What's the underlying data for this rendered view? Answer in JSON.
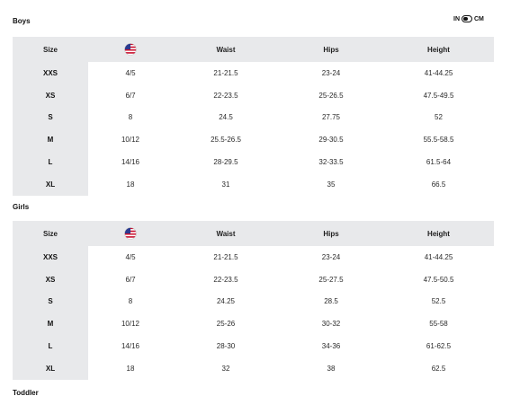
{
  "unit_toggle": {
    "left_label": "IN",
    "right_label": "CM",
    "selected": "IN"
  },
  "columns": {
    "size": "Size",
    "us_flag_icon": "us-flag-icon",
    "waist": "Waist",
    "hips": "Hips",
    "height": "Height"
  },
  "boys": {
    "title": "Boys",
    "rows": [
      {
        "size": "XXS",
        "us": "4/5",
        "waist": "21-21.5",
        "hips": "23-24",
        "height": "41-44.25"
      },
      {
        "size": "XS",
        "us": "6/7",
        "waist": "22-23.5",
        "hips": "25-26.5",
        "height": "47.5-49.5"
      },
      {
        "size": "S",
        "us": "8",
        "waist": "24.5",
        "hips": "27.75",
        "height": "52"
      },
      {
        "size": "M",
        "us": "10/12",
        "waist": "25.5-26.5",
        "hips": "29-30.5",
        "height": "55.5-58.5"
      },
      {
        "size": "L",
        "us": "14/16",
        "waist": "28-29.5",
        "hips": "32-33.5",
        "height": "61.5-64"
      },
      {
        "size": "XL",
        "us": "18",
        "waist": "31",
        "hips": "35",
        "height": "66.5"
      }
    ]
  },
  "girls": {
    "title": "Girls",
    "rows": [
      {
        "size": "XXS",
        "us": "4/5",
        "waist": "21-21.5",
        "hips": "23-24",
        "height": "41-44.25"
      },
      {
        "size": "XS",
        "us": "6/7",
        "waist": "22-23.5",
        "hips": "25-27.5",
        "height": "47.5-50.5"
      },
      {
        "size": "S",
        "us": "8",
        "waist": "24.25",
        "hips": "28.5",
        "height": "52.5"
      },
      {
        "size": "M",
        "us": "10/12",
        "waist": "25-26",
        "hips": "30-32",
        "height": "55-58"
      },
      {
        "size": "L",
        "us": "14/16",
        "waist": "28-30",
        "hips": "34-36",
        "height": "61-62.5"
      },
      {
        "size": "XL",
        "us": "18",
        "waist": "32",
        "hips": "38",
        "height": "62.5"
      }
    ]
  },
  "next_section_title": "Toddler"
}
